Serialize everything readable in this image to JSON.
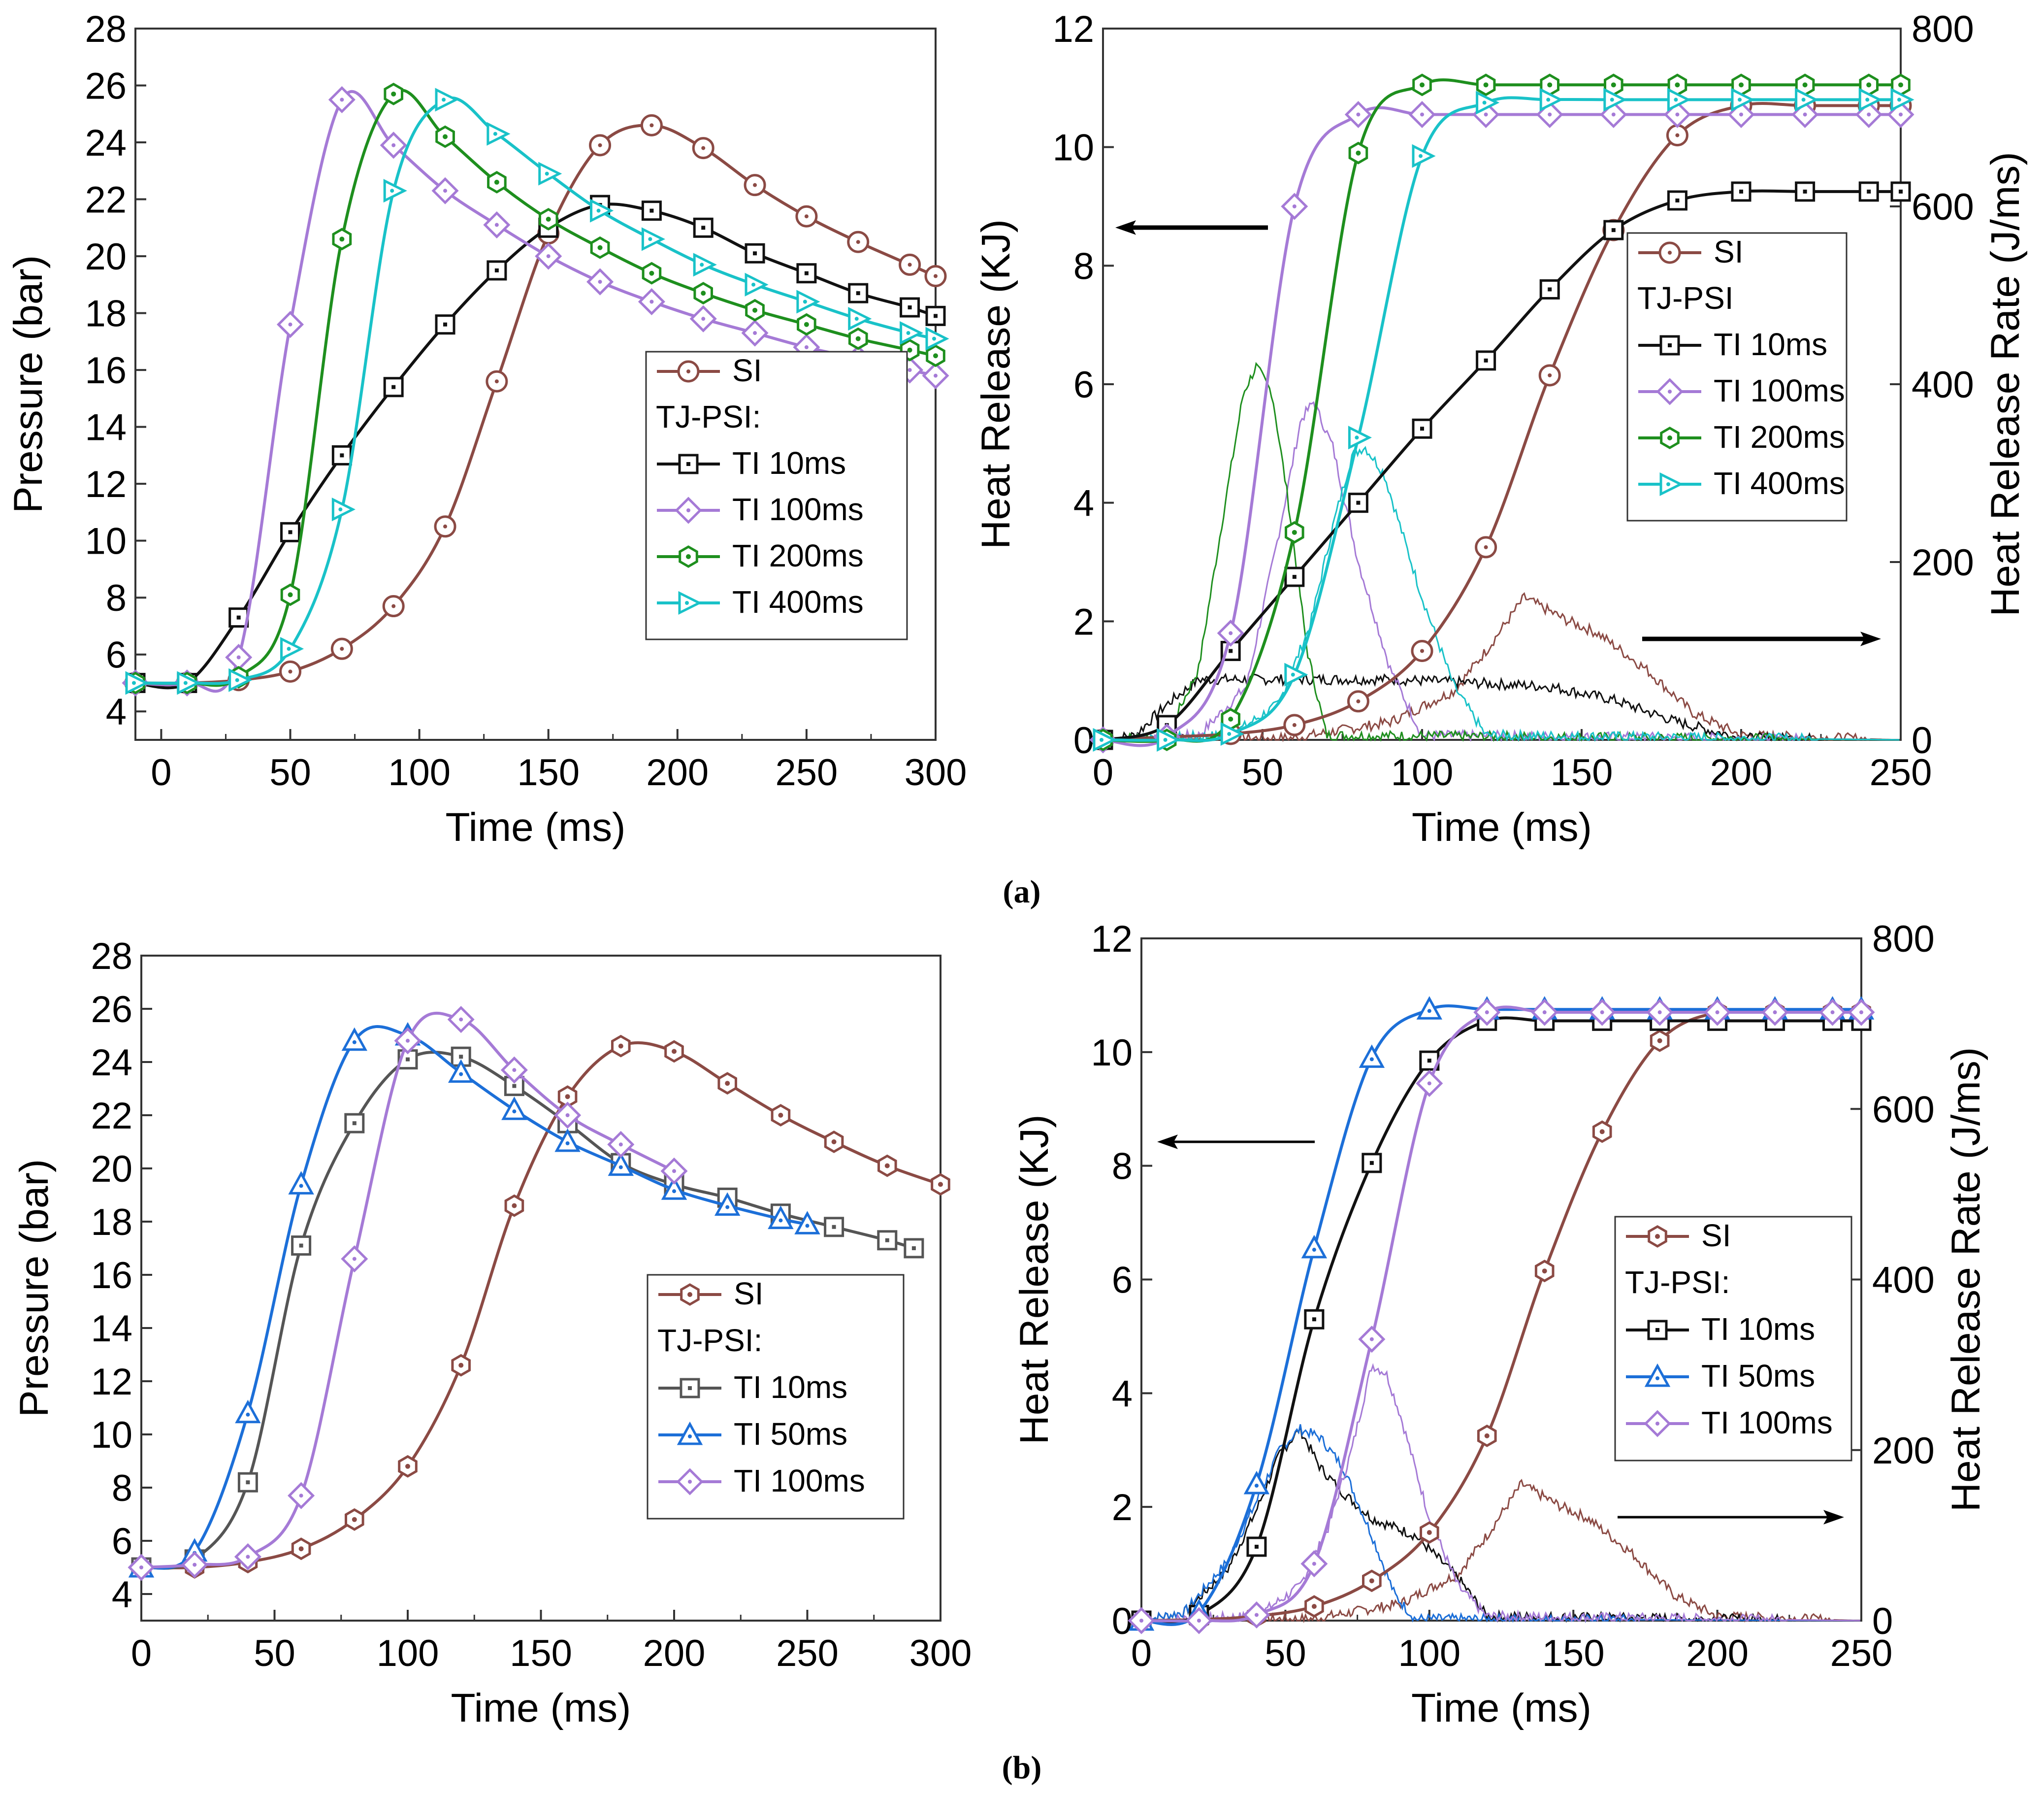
{
  "colors": {
    "SI": "#8b4a44",
    "TI 10ms": "#111111",
    "TI 10ms b": "#555555",
    "TI 50ms": "#1c6fd8",
    "TI 100ms": "#a57ad6",
    "TI 200ms": "#1e8f1e",
    "TI 400ms": "#19c2c8"
  },
  "captions": {
    "a": "(a)",
    "b": "(b)"
  },
  "chart_data": [
    {
      "id": "a-pressure",
      "type": "line",
      "xlabel": "Time (ms)",
      "ylabel": "Pressure (bar)",
      "xlim": [
        -10,
        300
      ],
      "ylim": [
        3,
        28
      ],
      "xticks": [
        0,
        50,
        100,
        150,
        200,
        250,
        300
      ],
      "yticks": [
        4,
        6,
        8,
        10,
        12,
        14,
        16,
        18,
        20,
        22,
        24,
        26,
        28
      ],
      "legend_title": "TJ-PSI:",
      "series": [
        {
          "name": "SI",
          "marker": "circle",
          "x": [
            -10,
            10,
            30,
            50,
            70,
            90,
            110,
            130,
            150,
            170,
            190,
            210,
            230,
            250,
            270,
            290,
            300
          ],
          "y": [
            5.0,
            5.0,
            5.1,
            5.4,
            6.2,
            7.7,
            10.5,
            15.6,
            20.8,
            23.9,
            24.6,
            23.8,
            22.5,
            21.4,
            20.5,
            19.7,
            19.3
          ]
        },
        {
          "name": "TI 10ms",
          "marker": "square",
          "x": [
            -10,
            10,
            30,
            50,
            70,
            90,
            110,
            130,
            150,
            170,
            190,
            210,
            230,
            250,
            270,
            290,
            300
          ],
          "y": [
            5.0,
            5.0,
            7.3,
            10.3,
            13.0,
            15.4,
            17.6,
            19.5,
            21.0,
            21.8,
            21.6,
            21.0,
            20.1,
            19.4,
            18.7,
            18.2,
            17.9
          ]
        },
        {
          "name": "TI 100ms",
          "marker": "diamond",
          "x": [
            -10,
            10,
            30,
            50,
            70,
            90,
            110,
            130,
            150,
            170,
            190,
            210,
            230,
            250,
            270,
            290,
            300
          ],
          "y": [
            5.0,
            5.0,
            5.9,
            17.6,
            25.5,
            23.9,
            22.3,
            21.1,
            20.0,
            19.1,
            18.4,
            17.8,
            17.3,
            16.8,
            16.4,
            16.0,
            15.8
          ]
        },
        {
          "name": "TI 200ms",
          "marker": "hexagon",
          "x": [
            -10,
            10,
            30,
            50,
            70,
            90,
            110,
            130,
            150,
            170,
            190,
            210,
            230,
            250,
            270,
            290,
            300
          ],
          "y": [
            5.0,
            5.0,
            5.2,
            8.1,
            20.6,
            25.7,
            24.2,
            22.6,
            21.3,
            20.3,
            19.4,
            18.7,
            18.1,
            17.6,
            17.1,
            16.7,
            16.5
          ]
        },
        {
          "name": "TI 400ms",
          "marker": "triangle-right",
          "x": [
            -10,
            10,
            30,
            50,
            70,
            90,
            110,
            130,
            150,
            170,
            190,
            210,
            230,
            250,
            270,
            290,
            300
          ],
          "y": [
            5.0,
            5.0,
            5.1,
            6.2,
            11.1,
            22.3,
            25.5,
            24.3,
            22.9,
            21.6,
            20.6,
            19.7,
            19.0,
            18.4,
            17.8,
            17.3,
            17.1
          ]
        }
      ]
    },
    {
      "id": "a-heat",
      "type": "line",
      "xlabel": "Time (ms)",
      "ylabel": "Heat Release (KJ)",
      "y2label": "Heat Release Rate (J/ms)",
      "xlim": [
        0,
        250
      ],
      "ylim": [
        0,
        12
      ],
      "y2lim": [
        0,
        800
      ],
      "xticks": [
        0,
        50,
        100,
        150,
        200,
        250
      ],
      "yticks": [
        0,
        2,
        4,
        6,
        8,
        10,
        12
      ],
      "y2ticks": [
        0,
        200,
        400,
        600,
        800
      ],
      "legend_title": "TJ-PSI",
      "series": [
        {
          "name": "SI",
          "marker": "circle",
          "x": [
            0,
            20,
            40,
            60,
            80,
            100,
            120,
            140,
            160,
            180,
            200,
            220,
            240,
            250
          ],
          "y": [
            0.0,
            0.05,
            0.1,
            0.25,
            0.65,
            1.5,
            3.25,
            6.15,
            8.6,
            10.2,
            10.7,
            10.7,
            10.7,
            10.7
          ]
        },
        {
          "name": "TI 10ms",
          "marker": "square",
          "x": [
            0,
            20,
            40,
            60,
            80,
            100,
            120,
            140,
            160,
            180,
            200,
            220,
            240,
            250
          ],
          "y": [
            0.0,
            0.25,
            1.5,
            2.75,
            4.0,
            5.25,
            6.4,
            7.6,
            8.6,
            9.1,
            9.25,
            9.25,
            9.25,
            9.25
          ]
        },
        {
          "name": "TI 100ms",
          "marker": "diamond",
          "x": [
            0,
            20,
            40,
            60,
            80,
            100,
            120,
            140,
            160,
            180,
            200,
            220,
            240,
            250
          ],
          "y": [
            0.0,
            0.05,
            1.8,
            9.0,
            10.55,
            10.55,
            10.55,
            10.55,
            10.55,
            10.55,
            10.55,
            10.55,
            10.55,
            10.55
          ]
        },
        {
          "name": "TI 200ms",
          "marker": "hexagon",
          "x": [
            0,
            20,
            40,
            60,
            80,
            100,
            120,
            140,
            160,
            180,
            200,
            220,
            240,
            250
          ],
          "y": [
            0.0,
            0.0,
            0.35,
            3.5,
            9.9,
            11.05,
            11.05,
            11.05,
            11.05,
            11.05,
            11.05,
            11.05,
            11.05,
            11.05
          ]
        },
        {
          "name": "TI 400ms",
          "marker": "triangle-right",
          "x": [
            0,
            20,
            40,
            60,
            80,
            100,
            120,
            140,
            160,
            180,
            200,
            220,
            240,
            250
          ],
          "y": [
            0.0,
            0.0,
            0.1,
            1.1,
            5.1,
            9.85,
            10.75,
            10.8,
            10.8,
            10.8,
            10.8,
            10.8,
            10.8,
            10.8
          ]
        }
      ],
      "rate_series": [
        {
          "name": "SI",
          "x": [
            0,
            60,
            90,
            110,
            120,
            132,
            145,
            155,
            170,
            185,
            200,
            250
          ],
          "y": [
            0,
            2,
            20,
            55,
            100,
            160,
            135,
            120,
            80,
            30,
            5,
            0
          ]
        },
        {
          "name": "TI 10ms",
          "x": [
            0,
            10,
            20,
            30,
            60,
            90,
            110,
            140,
            160,
            180,
            200,
            250
          ],
          "y": [
            0,
            5,
            40,
            68,
            68,
            68,
            65,
            60,
            45,
            20,
            2,
            0
          ]
        },
        {
          "name": "TI 100ms",
          "x": [
            0,
            30,
            45,
            55,
            62,
            66,
            72,
            80,
            90,
            100,
            250
          ],
          "y": [
            0,
            5,
            60,
            230,
            360,
            380,
            330,
            200,
            80,
            5,
            0
          ]
        },
        {
          "name": "TI 200ms",
          "x": [
            0,
            20,
            30,
            38,
            44,
            48,
            53,
            58,
            64,
            70,
            250
          ],
          "y": [
            0,
            5,
            80,
            260,
            390,
            420,
            390,
            270,
            100,
            5,
            0
          ]
        },
        {
          "name": "TI 400ms",
          "x": [
            0,
            40,
            55,
            65,
            72,
            78,
            82,
            88,
            100,
            110,
            120,
            250
          ],
          "y": [
            0,
            5,
            40,
            130,
            240,
            320,
            330,
            300,
            160,
            60,
            5,
            0
          ]
        }
      ]
    },
    {
      "id": "b-pressure",
      "type": "line",
      "xlabel": "Time (ms)",
      "ylabel": "Pressure (bar)",
      "xlim": [
        0,
        300
      ],
      "ylim": [
        3,
        28
      ],
      "xticks": [
        0,
        50,
        100,
        150,
        200,
        250,
        300
      ],
      "yticks": [
        4,
        6,
        8,
        10,
        12,
        14,
        16,
        18,
        20,
        22,
        24,
        26,
        28
      ],
      "legend_title": "TJ-PSI:",
      "series": [
        {
          "name": "SI",
          "marker": "hexagon",
          "x": [
            0,
            20,
            40,
            60,
            80,
            100,
            120,
            140,
            160,
            180,
            200,
            220,
            240,
            260,
            280,
            300
          ],
          "y": [
            5.0,
            5.0,
            5.2,
            5.7,
            6.8,
            8.8,
            12.6,
            18.6,
            22.7,
            24.6,
            24.4,
            23.2,
            22.0,
            21.0,
            20.1,
            19.4
          ]
        },
        {
          "name": "TI 10ms",
          "marker": "square",
          "x": [
            0,
            20,
            40,
            60,
            80,
            100,
            120,
            140,
            160,
            180,
            200,
            220,
            240,
            260,
            280,
            290
          ],
          "y": [
            5.0,
            5.3,
            8.2,
            17.1,
            21.7,
            24.1,
            24.2,
            23.1,
            21.7,
            20.2,
            19.4,
            18.9,
            18.3,
            17.8,
            17.3,
            17.0
          ]
        },
        {
          "name": "TI 50ms",
          "marker": "triangle",
          "x": [
            0,
            20,
            40,
            60,
            80,
            100,
            120,
            140,
            160,
            180,
            200,
            220,
            240,
            250
          ],
          "y": [
            5.0,
            5.6,
            10.8,
            19.4,
            24.8,
            25.0,
            23.6,
            22.2,
            21.0,
            20.1,
            19.2,
            18.6,
            18.1,
            17.9
          ]
        },
        {
          "name": "TI 100ms",
          "marker": "diamond",
          "x": [
            0,
            20,
            40,
            60,
            80,
            100,
            120,
            140,
            160,
            180,
            200
          ],
          "y": [
            5.0,
            5.1,
            5.4,
            7.7,
            16.6,
            24.8,
            25.6,
            23.7,
            22.0,
            20.9,
            19.9
          ]
        }
      ]
    },
    {
      "id": "b-heat",
      "type": "line",
      "xlabel": "Time (ms)",
      "ylabel": "Heat Release (KJ)",
      "y2label": "Heat Release Rate (J/ms)",
      "xlim": [
        0,
        250
      ],
      "ylim": [
        0,
        12
      ],
      "y2lim": [
        0,
        800
      ],
      "xticks": [
        0,
        50,
        100,
        150,
        200,
        250
      ],
      "yticks": [
        0,
        2,
        4,
        6,
        8,
        10,
        12
      ],
      "y2ticks": [
        0,
        200,
        400,
        600,
        800
      ],
      "legend_title": "TJ-PSI:",
      "series": [
        {
          "name": "SI",
          "marker": "hexagon",
          "x": [
            0,
            20,
            40,
            60,
            80,
            100,
            120,
            140,
            160,
            180,
            200,
            220,
            240,
            250
          ],
          "y": [
            0.0,
            0.02,
            0.08,
            0.25,
            0.7,
            1.55,
            3.25,
            6.15,
            8.6,
            10.2,
            10.7,
            10.7,
            10.7,
            10.7
          ]
        },
        {
          "name": "TI 10ms",
          "marker": "square",
          "x": [
            0,
            20,
            40,
            60,
            80,
            100,
            120,
            140,
            160,
            180,
            200,
            220,
            240,
            250
          ],
          "y": [
            0.0,
            0.1,
            1.3,
            5.3,
            8.05,
            9.85,
            10.55,
            10.55,
            10.55,
            10.55,
            10.55,
            10.55,
            10.55,
            10.55
          ]
        },
        {
          "name": "TI 50ms",
          "marker": "triangle",
          "x": [
            0,
            20,
            40,
            60,
            80,
            100,
            120,
            140,
            160,
            180,
            200,
            220,
            240,
            250
          ],
          "y": [
            0.0,
            0.15,
            2.4,
            6.55,
            9.9,
            10.75,
            10.75,
            10.75,
            10.75,
            10.75,
            10.75,
            10.75,
            10.75,
            10.75
          ]
        },
        {
          "name": "TI 100ms",
          "marker": "diamond",
          "x": [
            0,
            20,
            40,
            60,
            80,
            100,
            120,
            140,
            160,
            180,
            200,
            220,
            240,
            250
          ],
          "y": [
            0.0,
            0.0,
            0.1,
            1.0,
            4.95,
            9.45,
            10.7,
            10.7,
            10.7,
            10.7,
            10.7,
            10.7,
            10.7,
            10.7
          ]
        }
      ],
      "rate_series": [
        {
          "name": "SI",
          "x": [
            0,
            60,
            90,
            110,
            120,
            132,
            145,
            155,
            170,
            185,
            200,
            250
          ],
          "y": [
            0,
            2,
            20,
            55,
            100,
            160,
            135,
            120,
            80,
            30,
            5,
            0
          ]
        },
        {
          "name": "TI 10ms",
          "x": [
            0,
            15,
            30,
            40,
            48,
            55,
            62,
            70,
            80,
            95,
            110,
            120,
            250
          ],
          "y": [
            0,
            10,
            60,
            130,
            195,
            225,
            180,
            150,
            120,
            100,
            50,
            5,
            0
          ]
        },
        {
          "name": "TI 50ms",
          "x": [
            0,
            15,
            30,
            40,
            48,
            55,
            62,
            70,
            80,
            88,
            95,
            250
          ],
          "y": [
            0,
            10,
            70,
            140,
            200,
            225,
            215,
            180,
            100,
            30,
            2,
            0
          ]
        },
        {
          "name": "TI 100ms",
          "x": [
            0,
            40,
            55,
            65,
            73,
            80,
            85,
            90,
            100,
            110,
            120,
            250
          ],
          "y": [
            0,
            5,
            40,
            110,
            200,
            300,
            290,
            240,
            120,
            40,
            5,
            0
          ]
        }
      ]
    }
  ]
}
